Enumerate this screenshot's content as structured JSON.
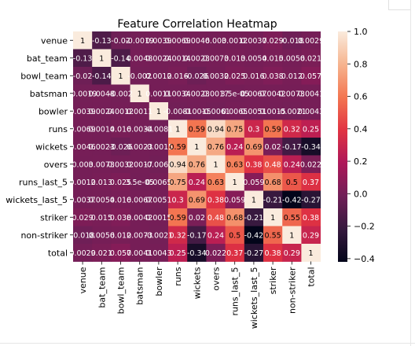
{
  "chart_data": {
    "type": "heatmap",
    "title": "Feature Correlation Heatmap",
    "xlabel": "",
    "ylabel": "",
    "labels": [
      "venue",
      "bat_team",
      "bowl_team",
      "batsman",
      "bowler",
      "runs",
      "wickets",
      "overs",
      "runs_last_5",
      "wickets_last_5",
      "striker",
      "non-striker",
      "total"
    ],
    "cell_text": [
      [
        "1",
        "-0.13",
        "-0.02",
        "-0.0019",
        "0.0039",
        "0.0069",
        "0.0046",
        "0.003",
        "0.0012",
        "0.0037",
        "0.029",
        "-0.018",
        "0.0029"
      ],
      [
        "-0.13",
        "1",
        "-0.14",
        "0.0048",
        "0.0024",
        "0.0014",
        "0.0023",
        "0.0073",
        "0.013",
        "0.0054",
        "0.015",
        "0.0056",
        "0.021"
      ],
      [
        "-0.02",
        "-0.14",
        "1",
        "-0.002",
        "0.0012",
        "0.016",
        "-0.026",
        "0.0032",
        "0.025",
        "0.016",
        "0.038",
        "0.012",
        "0.057"
      ],
      [
        "-0.0019",
        "0.0048",
        "-0.002",
        "1",
        "0.0011",
        "0.0034",
        "0.0023",
        "0.0017",
        "3.5e-05",
        "0.0067",
        "0.0042",
        "0.0073",
        "0.0041"
      ],
      [
        "0.0039",
        "0.0024",
        "0.0012",
        "0.0011",
        "1",
        "-0.0081",
        "-0.0015",
        "-0.0061",
        "0.0065",
        "0.0051",
        "0.0015",
        "-0.0021",
        "0.0043"
      ],
      [
        "0.0069",
        "0.0014",
        "0.016",
        "0.0034",
        "-0.0081",
        "1",
        "0.59",
        "0.94",
        "0.75",
        "0.3",
        "0.59",
        "0.32",
        "0.25"
      ],
      [
        "0.0046",
        "0.0023",
        "-0.026",
        "0.0023",
        "-0.0015",
        "0.59",
        "1",
        "0.76",
        "0.24",
        "0.69",
        "0.02",
        "-0.17",
        "-0.34"
      ],
      [
        "0.003",
        "0.0073",
        "0.0032",
        "0.0017",
        "-0.0061",
        "0.94",
        "0.76",
        "1",
        "0.63",
        "0.38",
        "0.48",
        "0.24",
        "0.022"
      ],
      [
        "0.0012",
        "0.013",
        "0.025",
        "3.5e-05",
        "0.0065",
        "0.75",
        "0.24",
        "0.63",
        "1",
        "0.059",
        "0.68",
        "0.5",
        "0.37"
      ],
      [
        "0.0037",
        "0.0054",
        "0.016",
        "0.0067",
        "0.0051",
        "0.3",
        "0.69",
        "0.38",
        "0.059",
        "1",
        "-0.21",
        "-0.42",
        "-0.27"
      ],
      [
        "0.029",
        "0.015",
        "0.038",
        "0.0042",
        "0.0015",
        "0.59",
        "0.02",
        "0.48",
        "0.68",
        "-0.21",
        "1",
        "0.55",
        "0.38"
      ],
      [
        "-0.018",
        "0.0056",
        "0.012",
        "0.0073",
        "-0.0021",
        "0.32",
        "-0.17",
        "0.24",
        "0.5",
        "-0.42",
        "0.55",
        "1",
        "0.29"
      ],
      [
        "0.0029",
        "0.021",
        "0.057",
        "0.0041",
        "0.0043",
        "0.25",
        "-0.34",
        "0.022",
        "0.37",
        "-0.27",
        "0.38",
        "0.29",
        "1"
      ]
    ],
    "colorbar": {
      "min": -0.42,
      "max": 1.0,
      "ticks": [
        1.0,
        0.8,
        0.6,
        0.4,
        0.2,
        0.0,
        -0.2,
        -0.4
      ],
      "tick_labels": [
        "1.0",
        "0.8",
        "0.6",
        "0.4",
        "0.2",
        "0.0",
        "−0.2",
        "−0.4"
      ],
      "colormap": "rocket",
      "colormap_stops": [
        "#03051a",
        "#36193e",
        "#701f57",
        "#ad1759",
        "#e13342",
        "#f37651",
        "#f6b48f",
        "#faebdd"
      ]
    },
    "grid": false,
    "legend": "colorbar-right"
  }
}
